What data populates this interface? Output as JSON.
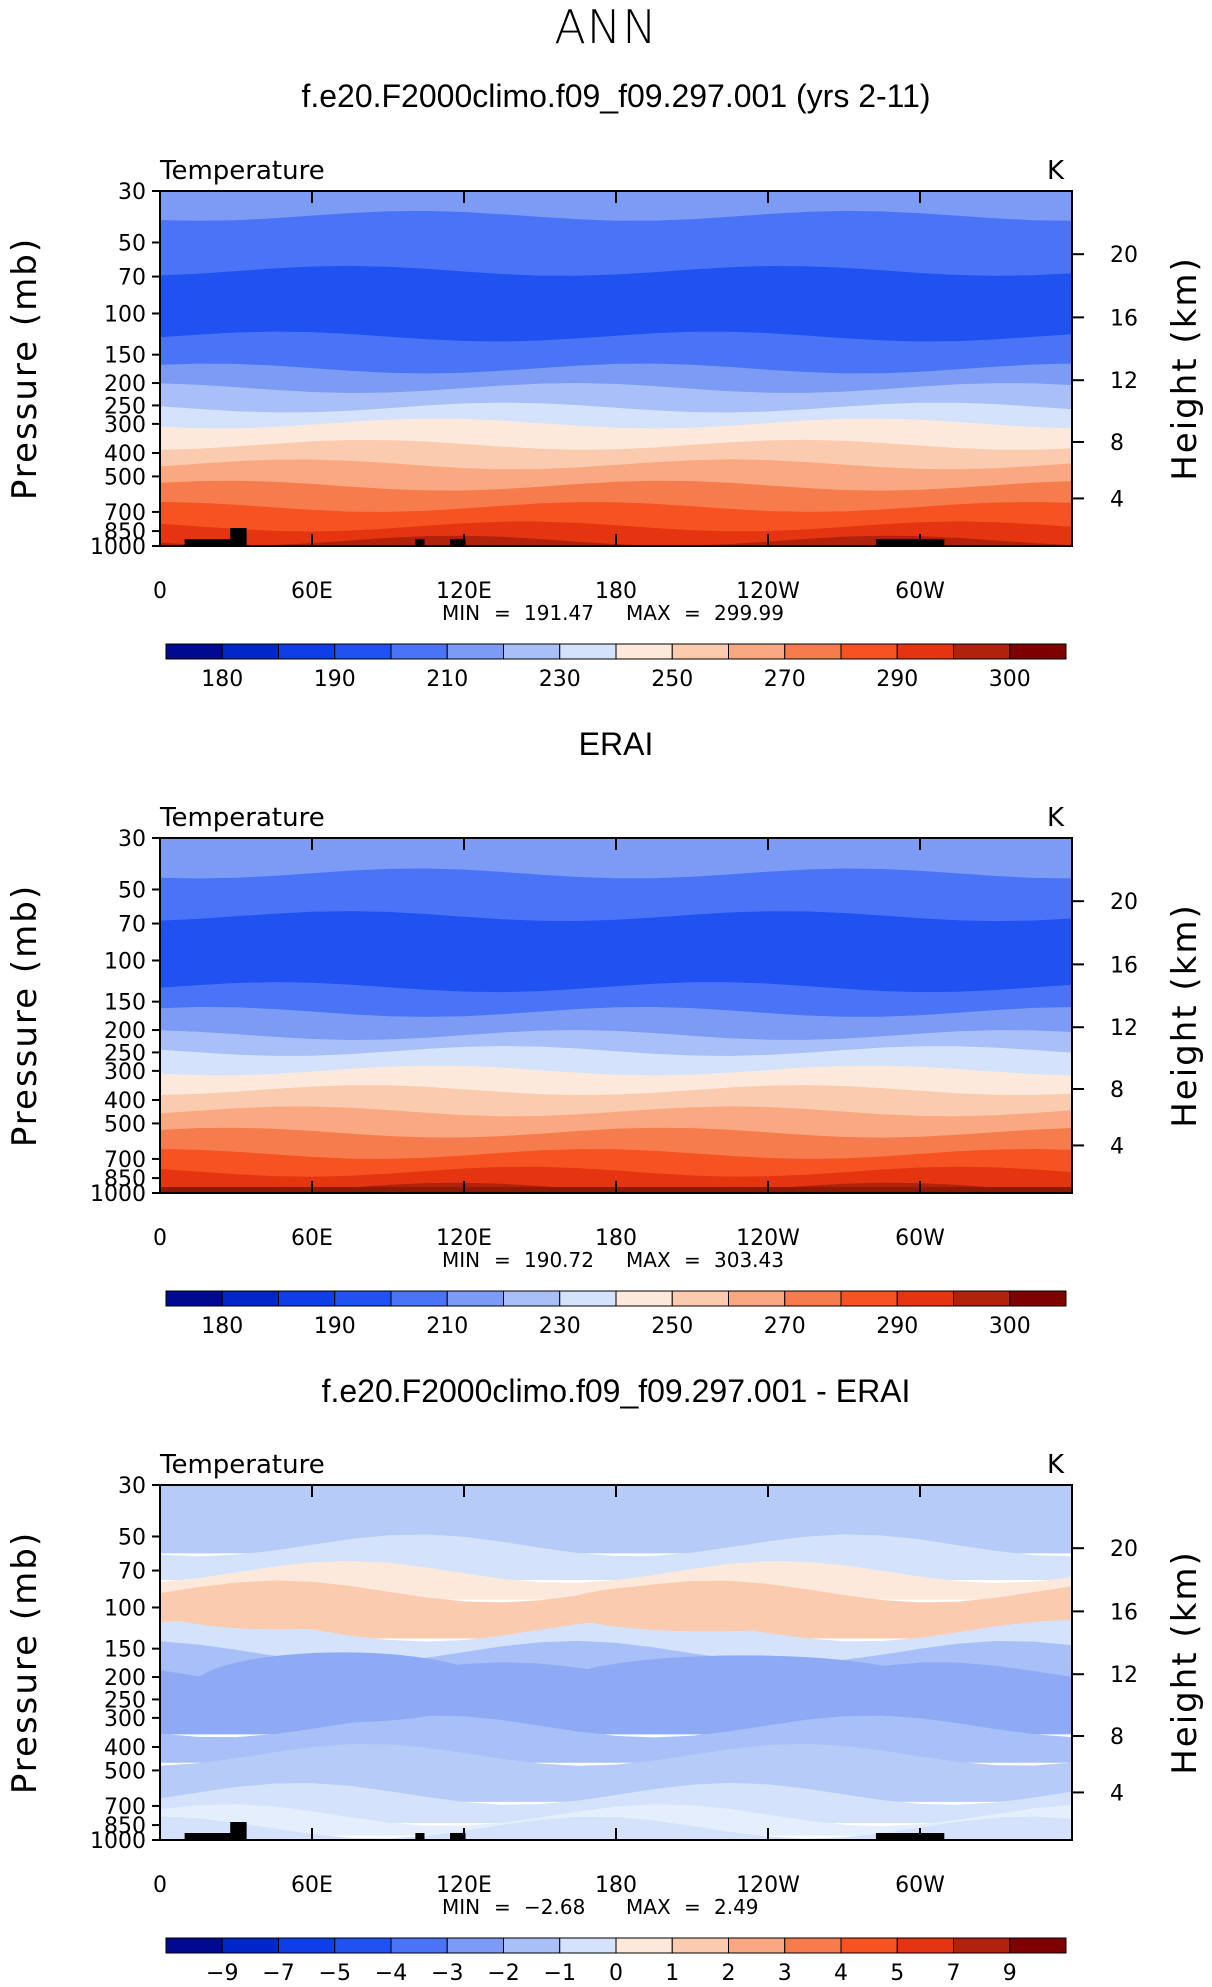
{
  "page_title": "ANN",
  "chart_data": [
    {
      "type": "contour",
      "title": "f.e20.F2000climo.f09_f09.297.001 (yrs 2-11)",
      "variable_label": "Temperature",
      "units_label": "K",
      "ylabel_left": "Pressure (mb)",
      "ylabel_right": "Height (km)",
      "pressure_ticks": [
        "30",
        "50",
        "70",
        "100",
        "150",
        "200",
        "250",
        "300",
        "400",
        "500",
        "700",
        "850",
        "1000"
      ],
      "height_ticks": [
        "20",
        "16",
        "12",
        "8",
        "4"
      ],
      "lon_ticks": [
        "0",
        "60E",
        "120E",
        "180",
        "120W",
        "60W"
      ],
      "min_label": "MIN",
      "min_value": "191.47",
      "max_label": "MAX",
      "max_value": "299.99",
      "colorbar_labels": [
        "180",
        "190",
        "210",
        "230",
        "250",
        "270",
        "290",
        "300"
      ],
      "colorbar_colors": [
        "#00098f",
        "#0026c8",
        "#0d3ee6",
        "#2052f2",
        "#4a74f5",
        "#7b9bf5",
        "#a8c0f7",
        "#d4e3fb",
        "#fde9dc",
        "#fbcbb0",
        "#f9a882",
        "#f67c4d",
        "#f65222",
        "#e43510",
        "#b0220b",
        "#7f0000"
      ],
      "band_colors": [
        "#7b9bf5",
        "#4a74f5",
        "#2052f2",
        "#4a74f5",
        "#7b9bf5",
        "#a8c0f7",
        "#d4e3fb",
        "#fde9dc",
        "#fbcbb0",
        "#f9a882",
        "#f67c4d",
        "#f65222",
        "#e43510",
        "#b0220b"
      ]
    },
    {
      "type": "contour",
      "title": "ERAI",
      "variable_label": "Temperature",
      "units_label": "K",
      "ylabel_left": "Pressure (mb)",
      "ylabel_right": "Height (km)",
      "pressure_ticks": [
        "30",
        "50",
        "70",
        "100",
        "150",
        "200",
        "250",
        "300",
        "400",
        "500",
        "700",
        "850",
        "1000"
      ],
      "height_ticks": [
        "20",
        "16",
        "12",
        "8",
        "4"
      ],
      "lon_ticks": [
        "0",
        "60E",
        "120E",
        "180",
        "120W",
        "60W"
      ],
      "min_label": "MIN",
      "min_value": "190.72",
      "max_label": "MAX",
      "max_value": "303.43",
      "colorbar_labels": [
        "180",
        "190",
        "210",
        "230",
        "250",
        "270",
        "290",
        "300"
      ],
      "colorbar_colors": [
        "#00098f",
        "#0026c8",
        "#0d3ee6",
        "#2052f2",
        "#4a74f5",
        "#7b9bf5",
        "#a8c0f7",
        "#d4e3fb",
        "#fde9dc",
        "#fbcbb0",
        "#f9a882",
        "#f67c4d",
        "#f65222",
        "#e43510",
        "#b0220b",
        "#7f0000"
      ],
      "band_colors": [
        "#7b9bf5",
        "#4a74f5",
        "#2052f2",
        "#4a74f5",
        "#7b9bf5",
        "#a8c0f7",
        "#d4e3fb",
        "#fde9dc",
        "#fbcbb0",
        "#f9a882",
        "#f67c4d",
        "#f65222",
        "#e43510",
        "#b0220b"
      ]
    },
    {
      "type": "contour",
      "title": "f.e20.F2000climo.f09_f09.297.001 - ERAI",
      "variable_label": "Temperature",
      "units_label": "K",
      "ylabel_left": "Pressure (mb)",
      "ylabel_right": "Height (km)",
      "pressure_ticks": [
        "30",
        "50",
        "70",
        "100",
        "150",
        "200",
        "250",
        "300",
        "400",
        "500",
        "700",
        "850",
        "1000"
      ],
      "height_ticks": [
        "20",
        "16",
        "12",
        "8",
        "4"
      ],
      "lon_ticks": [
        "0",
        "60E",
        "120E",
        "180",
        "120W",
        "60W"
      ],
      "min_label": "MIN",
      "min_value": "−2.68",
      "max_label": "MAX",
      "max_value": "2.49",
      "colorbar_labels": [
        "−9",
        "−7",
        "−5",
        "−4",
        "−3",
        "−2",
        "−1",
        "0",
        "1",
        "2",
        "3",
        "4",
        "5",
        "7",
        "9"
      ],
      "colorbar_colors": [
        "#00098f",
        "#0026c8",
        "#0d3ee6",
        "#2052f2",
        "#4a74f5",
        "#7b9bf5",
        "#a8c0f7",
        "#d4e3fb",
        "#fde9dc",
        "#fbcbb0",
        "#f9a882",
        "#f67c4d",
        "#f65222",
        "#e43510",
        "#b0220b",
        "#7f0000"
      ],
      "band_colors": [
        "#b7cbf8",
        "#d4e3fb",
        "#fde9dc",
        "#fbcbb0",
        "#d4e3fb",
        "#a8c0f7",
        "#8eaaf5",
        "#a8c0f7",
        "#b7cbf8",
        "#d4e3fb",
        "#e4eefc",
        "#d4e3fb"
      ]
    }
  ]
}
